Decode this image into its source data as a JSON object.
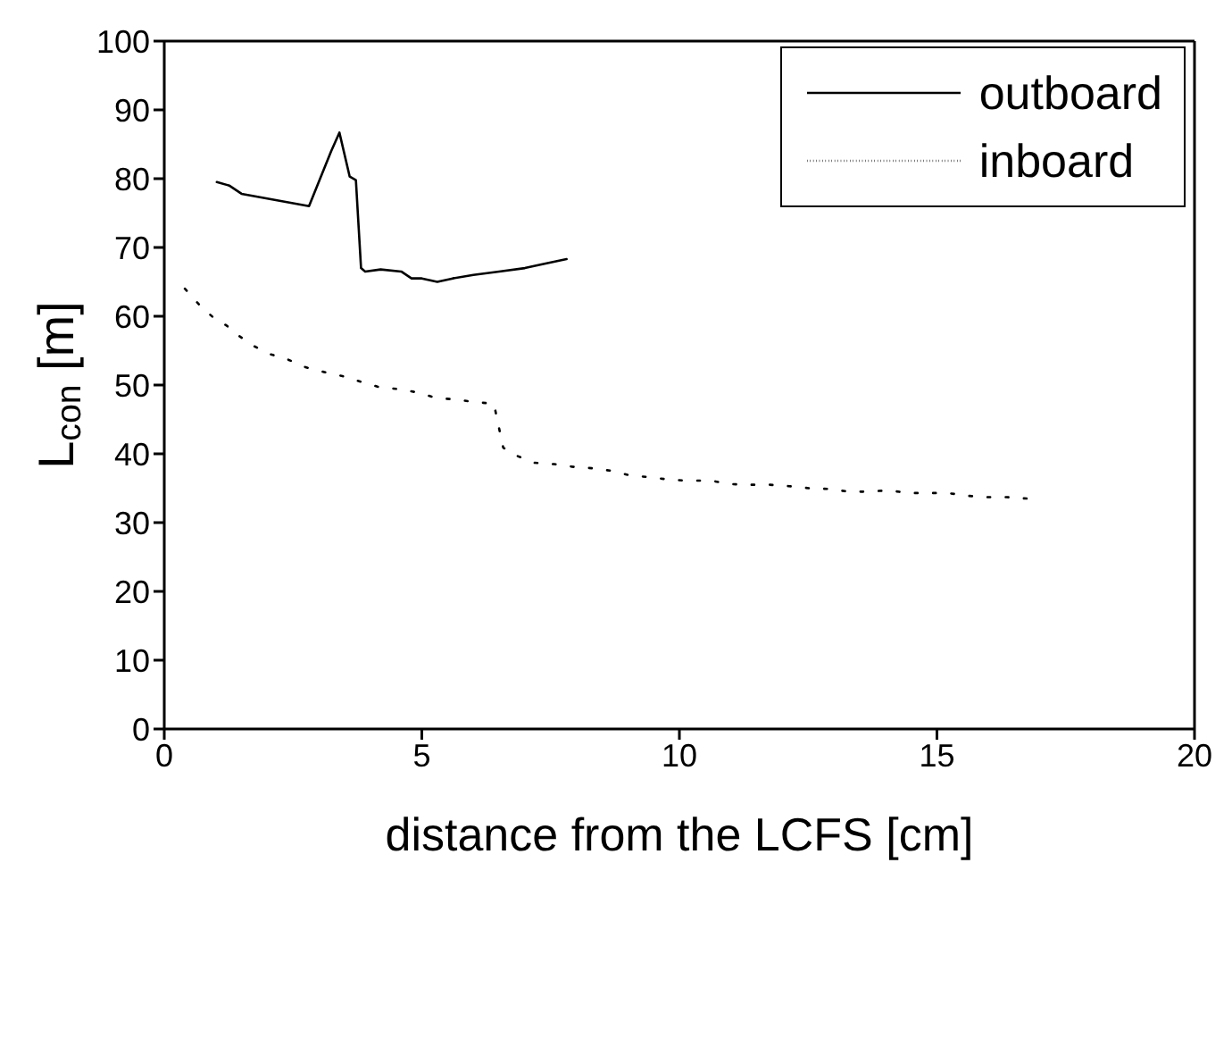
{
  "chart_data": {
    "type": "line",
    "xlabel": "distance from the LCFS [cm]",
    "ylabel": "L$_{con}$ [m]",
    "xlim": [
      0,
      20
    ],
    "xticks": [
      0,
      5,
      10,
      15,
      20
    ],
    "ylim": [
      0,
      100
    ],
    "yticks": [
      0,
      10,
      20,
      30,
      40,
      50,
      60,
      70,
      80,
      90,
      100
    ],
    "legend": "top right",
    "marker": "none",
    "series": [
      {
        "name": "outboard",
        "color": "#000000",
        "line_style": "solid",
        "x": [
          1.02,
          1.26,
          1.5,
          2.81,
          3.24,
          3.4,
          3.6,
          3.72,
          3.82,
          3.9,
          4.2,
          4.6,
          4.8,
          5.0,
          5.3,
          5.6,
          6.0,
          6.5,
          7.0,
          7.3,
          7.81
        ],
        "values": [
          79.5,
          79.0,
          77.8,
          76.0,
          84,
          86.7,
          80.3,
          79.8,
          67.0,
          66.5,
          66.8,
          66.5,
          65.5,
          65.5,
          65.0,
          65.5,
          66.0,
          66.5,
          67.0,
          67.5,
          68.3
        ]
      },
      {
        "name": "inboard",
        "color": "#000000",
        "line_style": "dotted",
        "x": [
          0.4,
          0.7,
          1.0,
          1.2,
          1.44,
          1.73,
          2.05,
          2.4,
          2.74,
          3.1,
          3.46,
          3.81,
          4.17,
          4.56,
          4.93,
          5.29,
          5.67,
          6.03,
          6.4,
          6.46,
          6.52,
          6.58,
          6.85,
          7.18,
          7.57,
          7.95,
          8.32,
          8.71,
          9.07,
          9.45,
          9.84,
          10.22,
          10.61,
          10.99,
          11.38,
          11.75,
          12.13,
          12.52,
          12.9,
          13.28,
          13.67,
          14.05,
          14.44,
          14.82,
          15.21,
          15.59,
          15.97,
          16.36,
          16.74
        ],
        "values": [
          64,
          61.5,
          59.5,
          58.7,
          57.2,
          55.7,
          54.5,
          53.7,
          52.6,
          51.9,
          51.3,
          50.5,
          49.7,
          49.4,
          48.9,
          48.1,
          47.9,
          47.5,
          47.3,
          45.1,
          43.0,
          40.9,
          39.7,
          38.7,
          38.5,
          38.1,
          37.9,
          37.5,
          36.8,
          36.6,
          36.2,
          36.1,
          36.1,
          35.6,
          35.5,
          35.5,
          35.3,
          35.0,
          34.9,
          34.5,
          34.5,
          34.7,
          34.3,
          34.3,
          34.3,
          33.9,
          33.7,
          33.7,
          33.5
        ]
      }
    ]
  }
}
